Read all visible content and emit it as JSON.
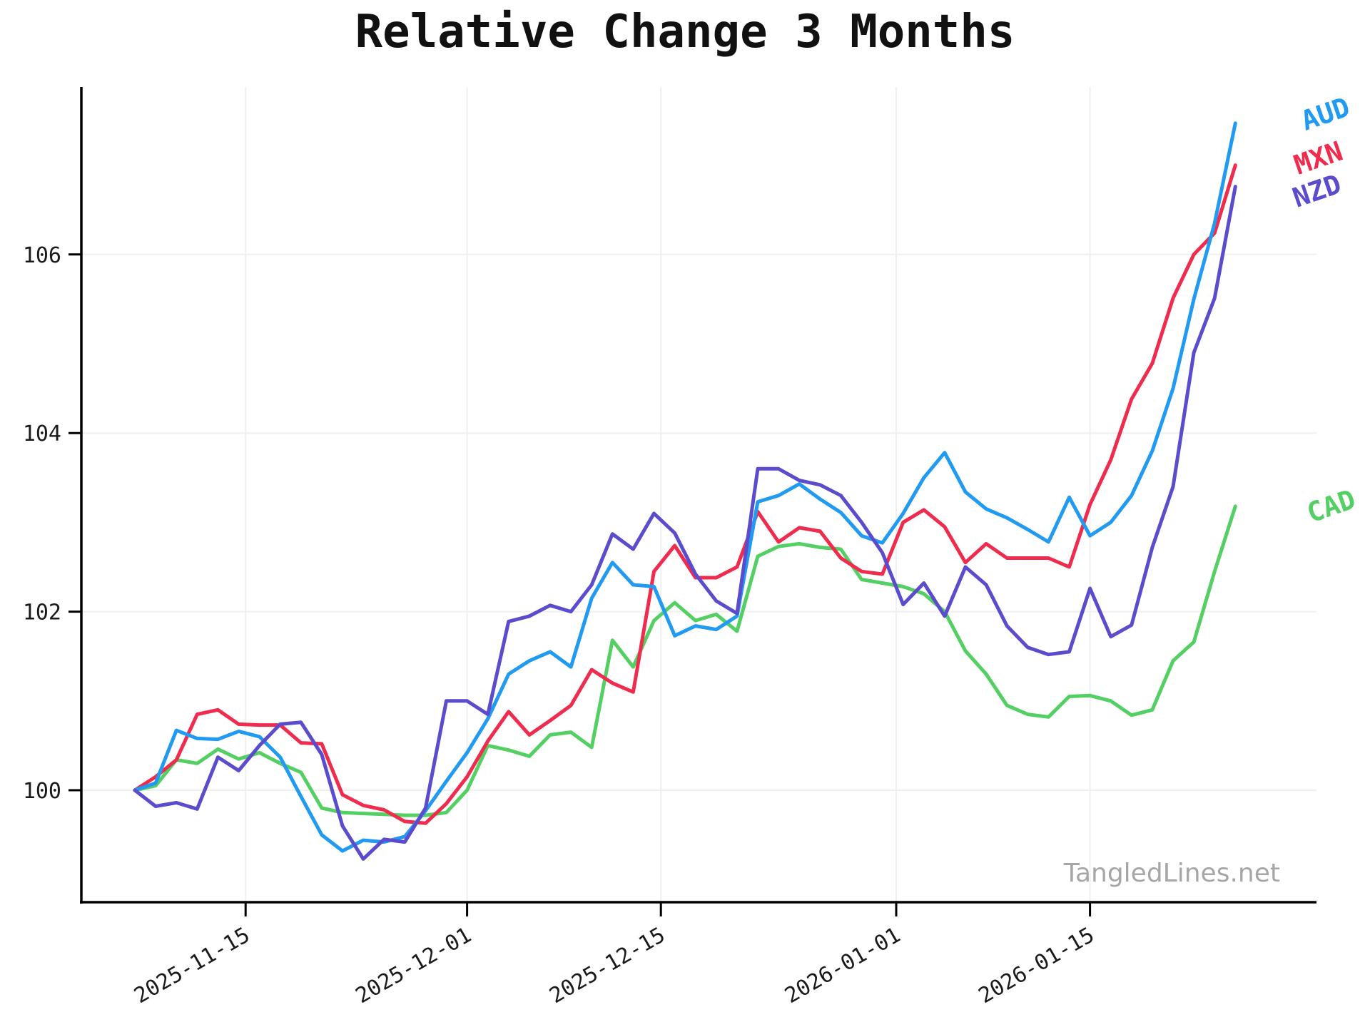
{
  "page": {
    "watermark": "TangledLines.net"
  },
  "chart_data": {
    "type": "line",
    "title": "Relative Change 3 Months",
    "xlabel": "",
    "ylabel": "",
    "grid": true,
    "legend_position": "line-end-right",
    "x_axis": {
      "start_date": "2025-11-07",
      "step_days": 1.5,
      "tick_labels": [
        "2025-11-15",
        "2025-12-01",
        "2025-12-15",
        "2026-01-01",
        "2026-01-15"
      ],
      "tick_days": [
        8,
        24,
        38,
        55,
        69
      ]
    },
    "y_axis": {
      "ticks": [
        100,
        102,
        104,
        106
      ],
      "range": [
        98.75,
        107.9
      ]
    },
    "series": [
      {
        "name": "AUD",
        "color": "#219af2",
        "values": [
          100.0,
          100.08,
          100.67,
          100.58,
          100.57,
          100.66,
          100.6,
          100.37,
          99.93,
          99.5,
          99.32,
          99.44,
          99.42,
          99.48,
          99.77,
          100.1,
          100.42,
          100.8,
          101.3,
          101.45,
          101.55,
          101.38,
          102.15,
          102.55,
          102.3,
          102.28,
          101.73,
          101.84,
          101.8,
          101.95,
          103.23,
          103.3,
          103.43,
          103.26,
          103.11,
          102.85,
          102.77,
          103.1,
          103.5,
          103.78,
          103.34,
          103.15,
          103.05,
          102.92,
          102.78,
          103.28,
          102.85,
          103.0,
          103.3,
          103.8,
          104.5,
          105.5,
          106.35,
          107.47
        ]
      },
      {
        "name": "MXN",
        "color": "#ef2b4e",
        "values": [
          100.0,
          100.15,
          100.34,
          100.85,
          100.9,
          100.74,
          100.73,
          100.73,
          100.53,
          100.52,
          99.95,
          99.83,
          99.78,
          99.65,
          99.63,
          99.85,
          100.15,
          100.55,
          100.88,
          100.62,
          100.78,
          100.95,
          101.35,
          101.2,
          101.1,
          102.45,
          102.74,
          102.38,
          102.38,
          102.5,
          103.12,
          102.78,
          102.94,
          102.9,
          102.6,
          102.45,
          102.42,
          103.0,
          103.14,
          102.95,
          102.55,
          102.76,
          102.6,
          102.6,
          102.6,
          102.5,
          103.2,
          103.7,
          104.38,
          104.78,
          105.51,
          106.0,
          106.24,
          107.0
        ]
      },
      {
        "name": "NZD",
        "color": "#5a4ccc",
        "values": [
          100.0,
          99.82,
          99.86,
          99.79,
          100.37,
          100.22,
          100.5,
          100.74,
          100.76,
          100.4,
          99.6,
          99.23,
          99.45,
          99.42,
          99.8,
          101.0,
          101.0,
          100.85,
          101.89,
          101.95,
          102.07,
          102.0,
          102.3,
          102.87,
          102.7,
          103.1,
          102.88,
          102.42,
          102.12,
          101.98,
          103.6,
          103.6,
          103.47,
          103.42,
          103.3,
          103.0,
          102.66,
          102.08,
          102.32,
          101.95,
          102.5,
          102.3,
          101.84,
          101.6,
          101.52,
          101.55,
          102.26,
          101.72,
          101.85,
          102.72,
          103.4,
          104.9,
          105.51,
          106.76
        ]
      },
      {
        "name": "CAD",
        "color": "#53cf63",
        "values": [
          100.0,
          100.05,
          100.34,
          100.3,
          100.46,
          100.35,
          100.42,
          100.3,
          100.2,
          99.8,
          99.75,
          99.74,
          99.73,
          99.72,
          99.72,
          99.75,
          100.0,
          100.5,
          100.45,
          100.38,
          100.62,
          100.65,
          100.48,
          101.68,
          101.38,
          101.9,
          102.1,
          101.9,
          101.97,
          101.78,
          102.62,
          102.73,
          102.76,
          102.72,
          102.7,
          102.36,
          102.32,
          102.28,
          102.2,
          102.0,
          101.56,
          101.3,
          100.95,
          100.85,
          100.82,
          101.05,
          101.06,
          101.0,
          100.84,
          100.9,
          101.45,
          101.66,
          102.45,
          103.18
        ]
      }
    ]
  }
}
